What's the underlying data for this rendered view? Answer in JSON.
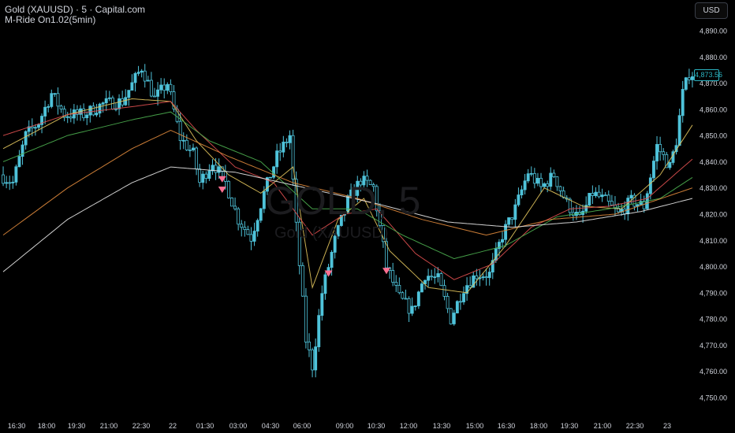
{
  "header": {
    "title": "Gold (XAUUSD) · 5 · Capital.com",
    "indicator": "M-Ride On1.02(5min)",
    "currency_button": "USD"
  },
  "watermark": {
    "symbol": "GOLD, 5",
    "subtitle": "Gold (XAUUSD)"
  },
  "price_axis": {
    "labels": [
      "4,890.00",
      "4,880.00",
      "4,870.00",
      "4,860.00",
      "4,850.00",
      "4,840.00",
      "4,830.00",
      "4,820.00",
      "4,810.00",
      "4,800.00",
      "4,790.00",
      "4,780.00",
      "4,770.00",
      "4,760.00",
      "4,750.00"
    ],
    "last_price": "4,873.56"
  },
  "time_axis": {
    "labels": [
      "16:30",
      "18:00",
      "19:30",
      "21:00",
      "22:30",
      "22",
      "01:30",
      "03:00",
      "04:30",
      "06:00",
      "09:00",
      "10:30",
      "12:00",
      "13:30",
      "15:00",
      "16:30",
      "18:00",
      "19:30",
      "21:00",
      "22:30",
      "23"
    ]
  },
  "colors": {
    "candle": "#4fc3da",
    "candle_wick": "#4fc3da",
    "ma_fast": "#e0c35c",
    "ma_2": "#e05050",
    "ma_3": "#4caf50",
    "ma_4": "#e08a3c",
    "ma_5": "#e8e8e8",
    "signal": "#ff6f91",
    "last_price": "#2bb3c0"
  },
  "chart_data": {
    "type": "candlestick",
    "title": "Gold (XAUUSD) · 5 · Capital.com",
    "ylim": [
      4745,
      4897
    ],
    "x_ticks": [
      "16:30",
      "18:00",
      "19:30",
      "21:00",
      "22:30",
      "22",
      "01:30",
      "03:00",
      "04:30",
      "06:00",
      "09:00",
      "10:30",
      "12:00",
      "13:30",
      "15:00",
      "16:30",
      "18:00",
      "19:30",
      "21:00",
      "22:30",
      "23"
    ],
    "price_path": [
      [
        0,
        4835
      ],
      [
        4,
        4832
      ],
      [
        8,
        4850
      ],
      [
        12,
        4855
      ],
      [
        16,
        4866
      ],
      [
        20,
        4858
      ],
      [
        26,
        4858
      ],
      [
        32,
        4862
      ],
      [
        38,
        4863
      ],
      [
        44,
        4876
      ],
      [
        48,
        4864
      ],
      [
        52,
        4870
      ],
      [
        56,
        4849
      ],
      [
        60,
        4843
      ],
      [
        62,
        4832
      ],
      [
        66,
        4840
      ],
      [
        70,
        4832
      ],
      [
        74,
        4818
      ],
      [
        78,
        4811
      ],
      [
        82,
        4828
      ],
      [
        86,
        4842
      ],
      [
        90,
        4850
      ],
      [
        92,
        4815
      ],
      [
        95,
        4772
      ],
      [
        97,
        4762
      ],
      [
        100,
        4790
      ],
      [
        104,
        4810
      ],
      [
        108,
        4825
      ],
      [
        112,
        4833
      ],
      [
        116,
        4830
      ],
      [
        120,
        4800
      ],
      [
        124,
        4788
      ],
      [
        128,
        4783
      ],
      [
        132,
        4797
      ],
      [
        136,
        4795
      ],
      [
        140,
        4780
      ],
      [
        144,
        4792
      ],
      [
        148,
        4797
      ],
      [
        152,
        4797
      ],
      [
        156,
        4812
      ],
      [
        160,
        4822
      ],
      [
        164,
        4836
      ],
      [
        168,
        4830
      ],
      [
        172,
        4835
      ],
      [
        176,
        4824
      ],
      [
        180,
        4818
      ],
      [
        184,
        4828
      ],
      [
        188,
        4825
      ],
      [
        192,
        4820
      ],
      [
        196,
        4825
      ],
      [
        200,
        4823
      ],
      [
        204,
        4846
      ],
      [
        208,
        4838
      ],
      [
        210,
        4848
      ],
      [
        212,
        4866
      ],
      [
        214,
        4873.56
      ]
    ],
    "series": [
      {
        "name": "",
        "color": "#e0c35c",
        "values": [
          [
            0,
            4845
          ],
          [
            20,
            4858
          ],
          [
            40,
            4864
          ],
          [
            52,
            4863
          ],
          [
            60,
            4848
          ],
          [
            70,
            4835
          ],
          [
            80,
            4828
          ],
          [
            90,
            4838
          ],
          [
            96,
            4792
          ],
          [
            104,
            4818
          ],
          [
            112,
            4826
          ],
          [
            120,
            4806
          ],
          [
            132,
            4792
          ],
          [
            144,
            4790
          ],
          [
            156,
            4808
          ],
          [
            168,
            4830
          ],
          [
            180,
            4823
          ],
          [
            192,
            4822
          ],
          [
            204,
            4835
          ],
          [
            214,
            4854
          ]
        ]
      },
      {
        "name": "",
        "color": "#e05050",
        "values": [
          [
            0,
            4850
          ],
          [
            20,
            4858
          ],
          [
            40,
            4861
          ],
          [
            52,
            4863
          ],
          [
            60,
            4852
          ],
          [
            72,
            4838
          ],
          [
            84,
            4832
          ],
          [
            96,
            4812
          ],
          [
            106,
            4820
          ],
          [
            116,
            4822
          ],
          [
            128,
            4805
          ],
          [
            140,
            4795
          ],
          [
            152,
            4801
          ],
          [
            164,
            4815
          ],
          [
            176,
            4822
          ],
          [
            188,
            4823
          ],
          [
            200,
            4826
          ],
          [
            214,
            4841
          ]
        ]
      },
      {
        "name": "",
        "color": "#4caf50",
        "values": [
          [
            0,
            4840
          ],
          [
            20,
            4850
          ],
          [
            40,
            4856
          ],
          [
            52,
            4859
          ],
          [
            64,
            4848
          ],
          [
            80,
            4840
          ],
          [
            96,
            4822
          ],
          [
            110,
            4822
          ],
          [
            124,
            4812
          ],
          [
            140,
            4803
          ],
          [
            156,
            4808
          ],
          [
            172,
            4819
          ],
          [
            188,
            4822
          ],
          [
            204,
            4826
          ],
          [
            214,
            4834
          ]
        ]
      },
      {
        "name": "",
        "color": "#e08a3c",
        "values": [
          [
            0,
            4812
          ],
          [
            20,
            4830
          ],
          [
            40,
            4845
          ],
          [
            52,
            4852
          ],
          [
            70,
            4842
          ],
          [
            90,
            4832
          ],
          [
            110,
            4826
          ],
          [
            130,
            4818
          ],
          [
            150,
            4812
          ],
          [
            170,
            4818
          ],
          [
            190,
            4820
          ],
          [
            214,
            4830
          ]
        ]
      },
      {
        "name": "",
        "color": "#e8e8e8",
        "values": [
          [
            0,
            4798
          ],
          [
            20,
            4818
          ],
          [
            40,
            4832
          ],
          [
            52,
            4838
          ],
          [
            72,
            4836
          ],
          [
            94,
            4830
          ],
          [
            116,
            4824
          ],
          [
            138,
            4817
          ],
          [
            158,
            4815
          ],
          [
            178,
            4817
          ],
          [
            198,
            4821
          ],
          [
            214,
            4826
          ]
        ]
      }
    ],
    "signals": [
      {
        "type": "sell",
        "bar": 68,
        "price": 4833
      },
      {
        "type": "sell",
        "bar": 68,
        "price": 4829
      },
      {
        "type": "sell",
        "bar": 101,
        "price": 4797
      },
      {
        "type": "sell",
        "bar": 119,
        "price": 4798
      }
    ]
  }
}
